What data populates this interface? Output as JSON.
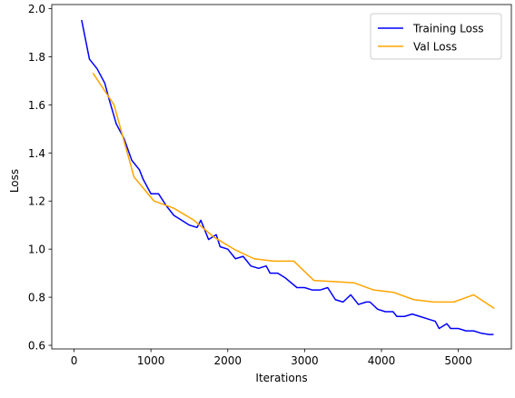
{
  "chart_data": {
    "type": "line",
    "title": "",
    "xlabel": "Iterations",
    "ylabel": "Loss",
    "xlim": [
      -290,
      5690
    ],
    "ylim": [
      0.585,
      2.017
    ],
    "xticks": [
      0,
      1000,
      2000,
      3000,
      4000,
      5000
    ],
    "yticks": [
      0.6,
      0.8,
      1.0,
      1.2,
      1.4,
      1.6,
      1.8,
      2.0
    ],
    "ytick_labels": [
      "0.6",
      "0.8",
      "1.0",
      "1.2",
      "1.4",
      "1.6",
      "1.8",
      "2.0"
    ],
    "grid": false,
    "legend_position": "top-right",
    "series": [
      {
        "name": "Training Loss",
        "color": "#0000ff",
        "points": [
          [
            100,
            1.95
          ],
          [
            200,
            1.79
          ],
          [
            300,
            1.75
          ],
          [
            400,
            1.69
          ],
          [
            450,
            1.63
          ],
          [
            550,
            1.52
          ],
          [
            650,
            1.46
          ],
          [
            750,
            1.37
          ],
          [
            850,
            1.33
          ],
          [
            900,
            1.29
          ],
          [
            1000,
            1.23
          ],
          [
            1100,
            1.23
          ],
          [
            1200,
            1.18
          ],
          [
            1300,
            1.14
          ],
          [
            1400,
            1.12
          ],
          [
            1500,
            1.1
          ],
          [
            1600,
            1.09
          ],
          [
            1650,
            1.12
          ],
          [
            1750,
            1.04
          ],
          [
            1850,
            1.06
          ],
          [
            1900,
            1.01
          ],
          [
            2000,
            1.0
          ],
          [
            2100,
            0.96
          ],
          [
            2200,
            0.97
          ],
          [
            2300,
            0.93
          ],
          [
            2400,
            0.92
          ],
          [
            2500,
            0.93
          ],
          [
            2550,
            0.9
          ],
          [
            2650,
            0.9
          ],
          [
            2750,
            0.88
          ],
          [
            2900,
            0.84
          ],
          [
            3000,
            0.84
          ],
          [
            3100,
            0.83
          ],
          [
            3200,
            0.83
          ],
          [
            3300,
            0.84
          ],
          [
            3400,
            0.79
          ],
          [
            3500,
            0.78
          ],
          [
            3600,
            0.81
          ],
          [
            3700,
            0.77
          ],
          [
            3800,
            0.78
          ],
          [
            3850,
            0.78
          ],
          [
            3950,
            0.75
          ],
          [
            4050,
            0.74
          ],
          [
            4150,
            0.74
          ],
          [
            4200,
            0.72
          ],
          [
            4300,
            0.72
          ],
          [
            4400,
            0.73
          ],
          [
            4500,
            0.72
          ],
          [
            4600,
            0.71
          ],
          [
            4700,
            0.7
          ],
          [
            4750,
            0.67
          ],
          [
            4850,
            0.69
          ],
          [
            4900,
            0.67
          ],
          [
            5000,
            0.67
          ],
          [
            5100,
            0.66
          ],
          [
            5200,
            0.66
          ],
          [
            5300,
            0.65
          ],
          [
            5400,
            0.645
          ],
          [
            5450,
            0.645
          ]
        ]
      },
      {
        "name": "Val Loss",
        "color": "#ffa500",
        "points": [
          [
            250,
            1.73
          ],
          [
            520,
            1.6
          ],
          [
            780,
            1.3
          ],
          [
            1040,
            1.2
          ],
          [
            1300,
            1.17
          ],
          [
            1560,
            1.12
          ],
          [
            1820,
            1.05
          ],
          [
            2080,
            1.0
          ],
          [
            2340,
            0.96
          ],
          [
            2600,
            0.95
          ],
          [
            2860,
            0.95
          ],
          [
            3120,
            0.87
          ],
          [
            3380,
            0.865
          ],
          [
            3640,
            0.86
          ],
          [
            3900,
            0.83
          ],
          [
            4160,
            0.82
          ],
          [
            4420,
            0.79
          ],
          [
            4680,
            0.78
          ],
          [
            4940,
            0.78
          ],
          [
            5200,
            0.81
          ],
          [
            5460,
            0.755
          ]
        ]
      }
    ]
  }
}
